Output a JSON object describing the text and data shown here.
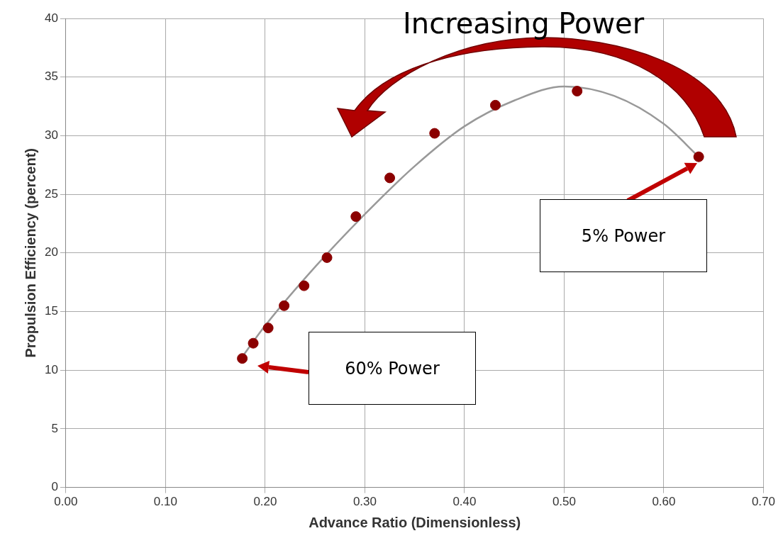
{
  "chart_data": {
    "type": "scatter",
    "xlabel": "Advance Ratio (Dimensionless)",
    "ylabel": "Propulsion Efficiency (percent)",
    "xlim": [
      0,
      0.7
    ],
    "xticks": [
      {
        "value": 0,
        "label": "0.00"
      },
      {
        "value": 0.1,
        "label": "0.10"
      },
      {
        "value": 0.2,
        "label": "0.20"
      },
      {
        "value": 0.3,
        "label": "0.30"
      },
      {
        "value": 0.4,
        "label": "0.40"
      },
      {
        "value": 0.5,
        "label": "0.50"
      },
      {
        "value": 0.6,
        "label": "0.60"
      },
      {
        "value": 0.7,
        "label": "0.70"
      }
    ],
    "ylim": [
      0,
      40
    ],
    "yticks": [
      0,
      5,
      10,
      15,
      20,
      25,
      30,
      35,
      40
    ],
    "grid": true,
    "series": [
      {
        "color": "#8b0000",
        "marker": "circle",
        "x": [
          0.177,
          0.188,
          0.203,
          0.219,
          0.239,
          0.262,
          0.291,
          0.325,
          0.37,
          0.431,
          0.513,
          0.635
        ],
        "values": [
          11.0,
          12.3,
          13.6,
          15.5,
          17.2,
          19.6,
          23.1,
          26.4,
          30.2,
          32.6,
          33.8,
          28.2
        ]
      },
      {
        "type": "line",
        "color": "#999999",
        "marker": "none",
        "x": [
          0.175,
          0.2,
          0.25,
          0.3,
          0.35,
          0.4,
          0.45,
          0.5,
          0.55,
          0.6,
          0.635
        ],
        "values": [
          10.9,
          13.8,
          18.8,
          23.3,
          27.4,
          30.8,
          33.0,
          34.2,
          33.4,
          31.0,
          28.2
        ]
      }
    ],
    "annotations": [
      "Increasing Power",
      "5% Power",
      "60% Power"
    ]
  }
}
